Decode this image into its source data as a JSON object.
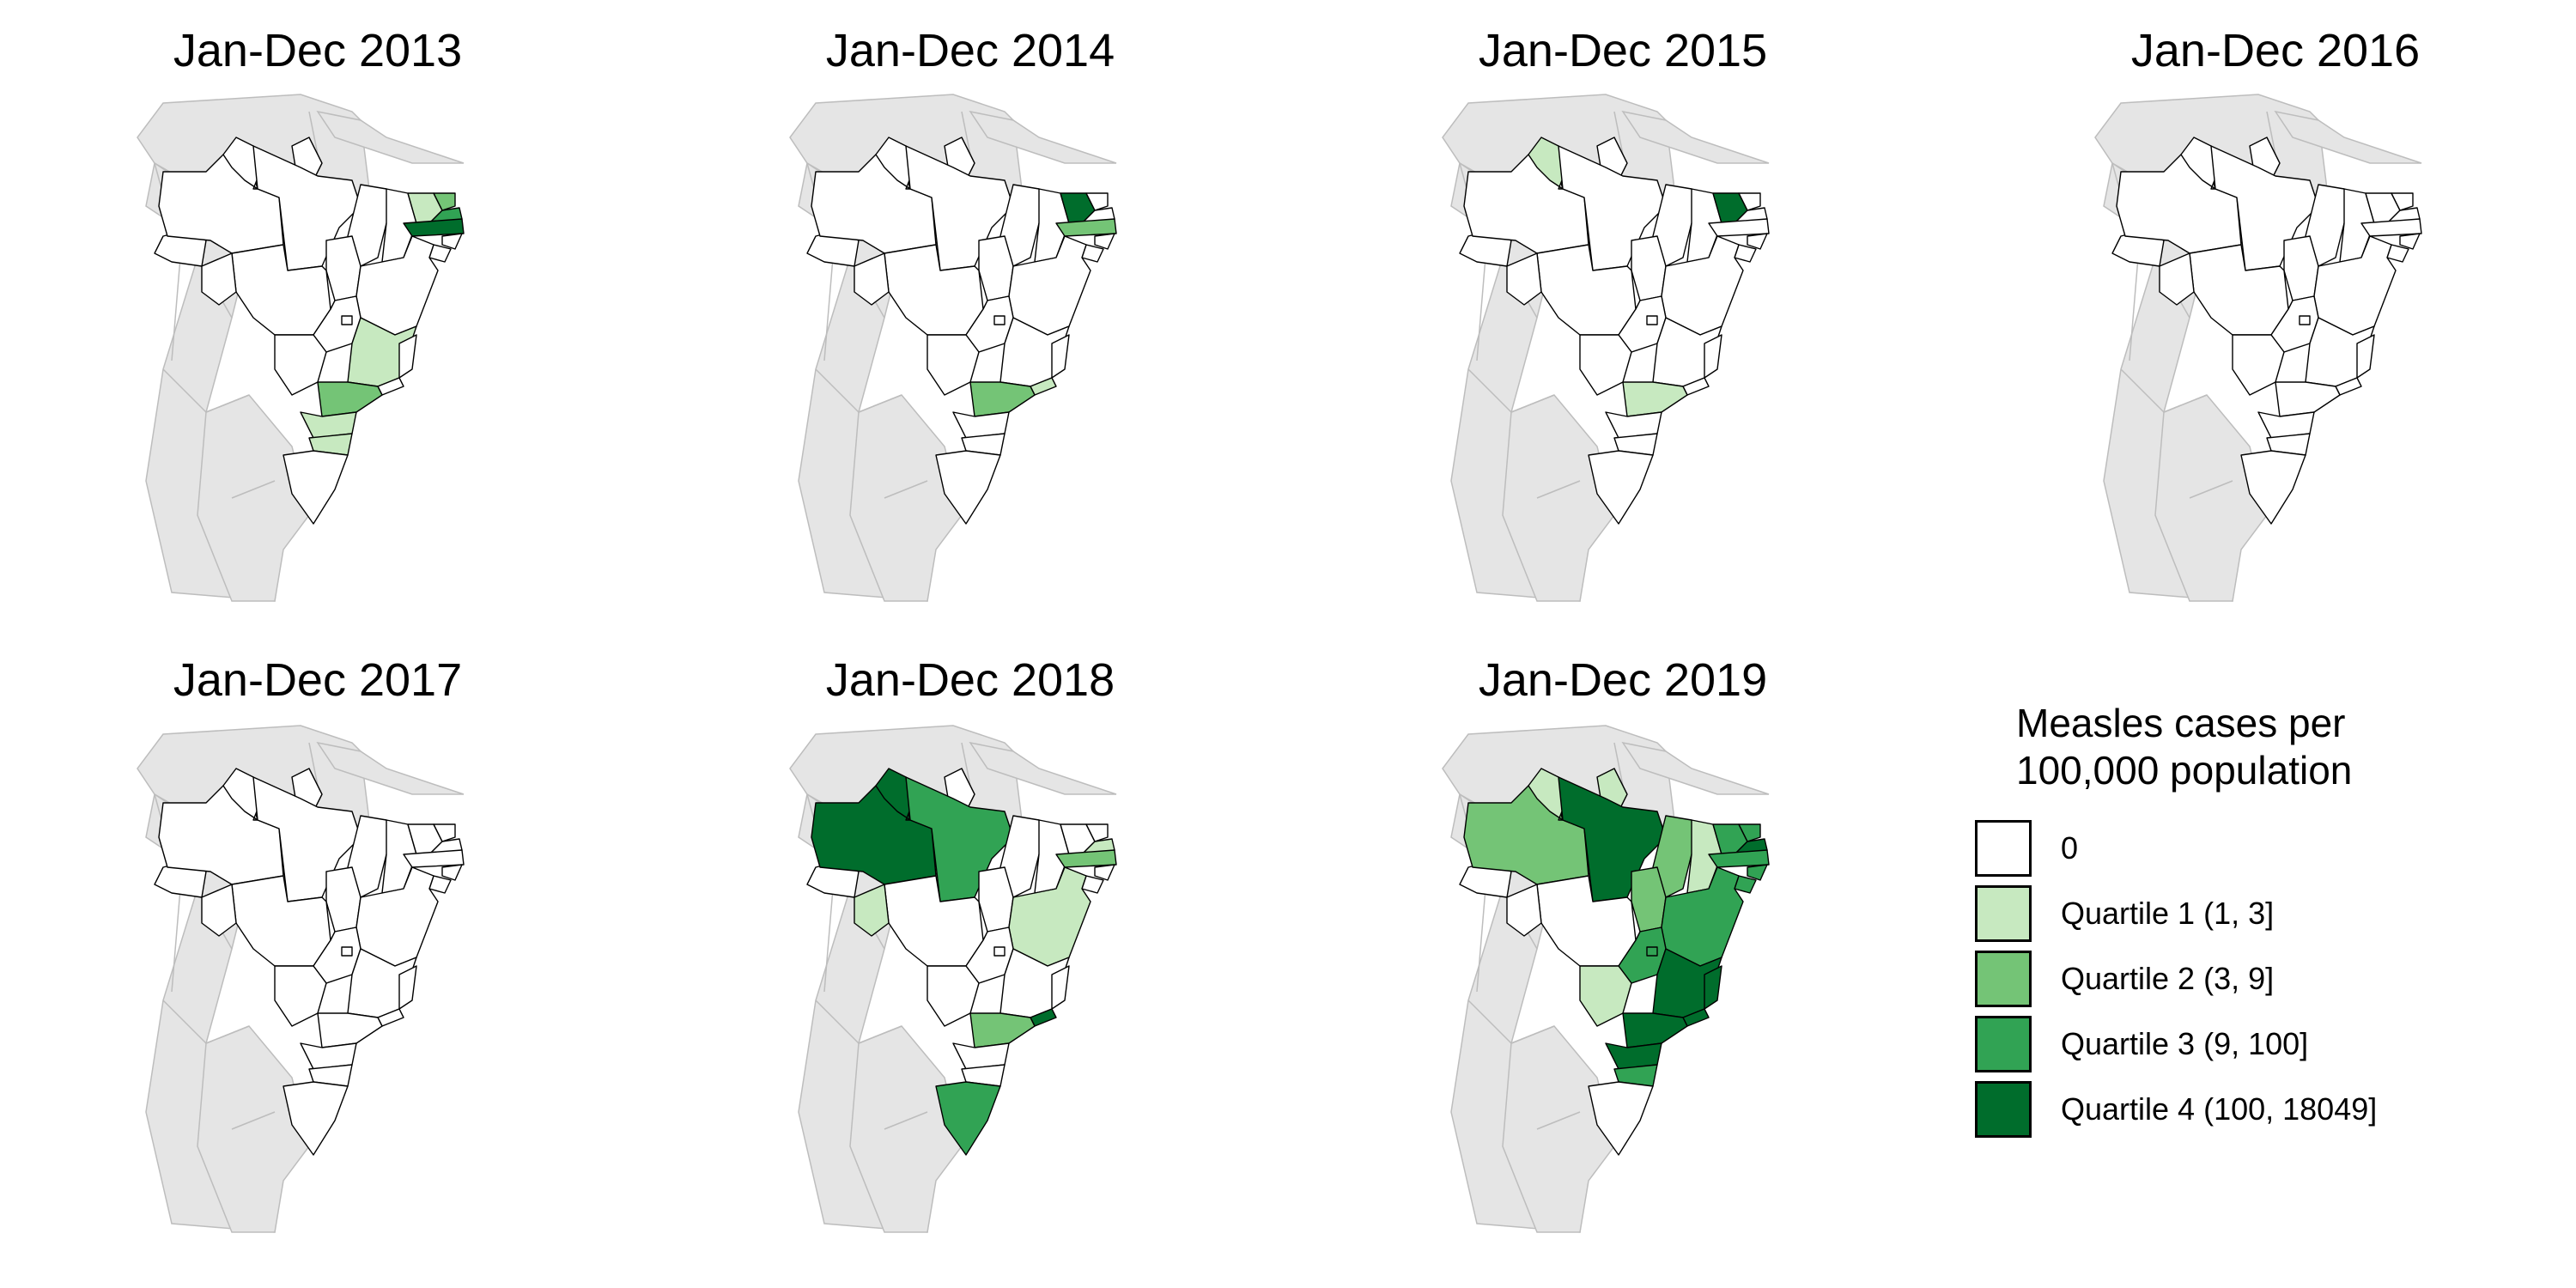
{
  "colors": {
    "zero": "#ffffff",
    "q1": "#c7e9c0",
    "q2": "#74c476",
    "q3": "#31a354",
    "q4": "#006d2c",
    "neighbors": "#e5e5e5",
    "neighbor_border": "#bdbdbd",
    "state_border": "#000000"
  },
  "legend": {
    "title_line1": "Measles cases per",
    "title_line2": "100,000 population",
    "items": [
      {
        "label": "0",
        "class": "zero"
      },
      {
        "label": "Quartile 1 (1, 3]",
        "class": "q1"
      },
      {
        "label": "Quartile 2 (3, 9]",
        "class": "q2"
      },
      {
        "label": "Quartile 3 (9, 100]",
        "class": "q3"
      },
      {
        "label": "Quartile 4 (100, 18049]",
        "class": "q4"
      }
    ]
  },
  "panels": [
    {
      "title": "Jan-Dec 2013",
      "states": {
        "CE": "q1",
        "RN": "q2",
        "PB": "q3",
        "PE": "q4",
        "MG": "q1",
        "SP": "q2",
        "PR": "q1",
        "SC": "q1"
      }
    },
    {
      "title": "Jan-Dec 2014",
      "states": {
        "CE": "q4",
        "PE": "q2",
        "SP": "q2",
        "RJ": "q1"
      }
    },
    {
      "title": "Jan-Dec 2015",
      "states": {
        "RR": "q1",
        "CE": "q4",
        "SP": "q1"
      }
    },
    {
      "title": "Jan-Dec 2016",
      "states": {}
    },
    {
      "title": "Jan-Dec 2017",
      "states": {}
    },
    {
      "title": "Jan-Dec 2018",
      "states": {
        "AM": "q4",
        "RR": "q4",
        "PA": "q3",
        "RO": "q1",
        "RS": "q3",
        "SP": "q2",
        "RJ": "q4",
        "BA": "q1",
        "PE": "q2",
        "PB": "q1"
      }
    },
    {
      "title": "Jan-Dec 2019",
      "states": {
        "AM": "q2",
        "RR": "q1",
        "PA": "q4",
        "AP": "q1",
        "TO": "q2",
        "MA": "q2",
        "PI": "q1",
        "CE": "q3",
        "RN": "q3",
        "PB": "q4",
        "PE": "q3",
        "AL": "q3",
        "SE": "q3",
        "BA": "q3",
        "GO": "q3",
        "DF": "q3",
        "MS": "q1",
        "MG": "q4",
        "ES": "q4",
        "RJ": "q4",
        "SP": "q4",
        "PR": "q4",
        "SC": "q3"
      }
    }
  ]
}
